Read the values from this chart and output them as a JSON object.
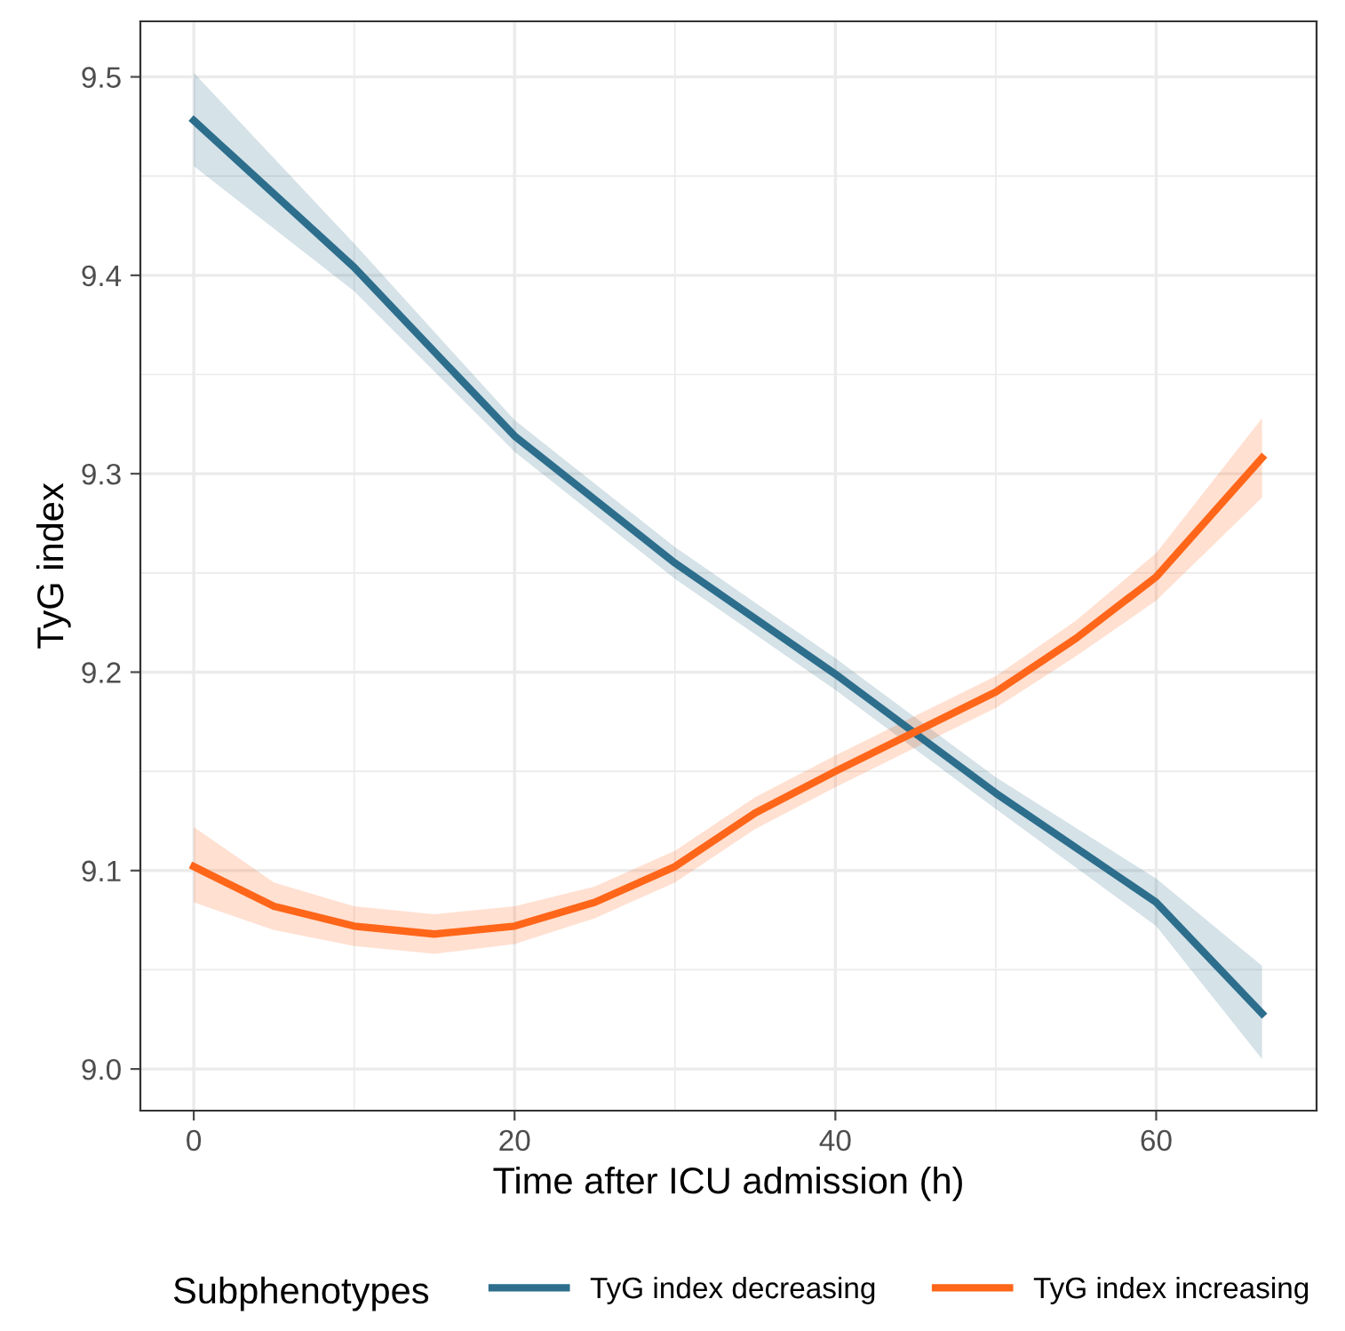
{
  "chart_data": {
    "type": "line",
    "xlabel": "Time after ICU admission (h)",
    "ylabel": "TyG index",
    "legend_title": "Subphenotypes",
    "xlim": [
      -3.33,
      69.93
    ],
    "ylim": [
      8.979,
      9.528
    ],
    "xticks": [
      0,
      20,
      40,
      60
    ],
    "yticks": [
      {
        "value": 9.0,
        "label": "9.0"
      },
      9.1,
      9.2,
      9.3,
      9.4,
      9.5
    ],
    "grid": true,
    "legend": "bottom",
    "line_style": "solid",
    "marker": "none",
    "series": [
      {
        "name": "TyG index decreasing",
        "color": "#2c6e8c",
        "x": [
          0,
          10,
          20,
          30,
          40,
          50,
          60,
          66.6
        ],
        "values": [
          9.478,
          9.404,
          9.319,
          9.255,
          9.199,
          9.139,
          9.084,
          9.028
        ],
        "lower": [
          9.455,
          9.392,
          9.311,
          9.247,
          9.191,
          9.131,
          9.072,
          9.005
        ],
        "upper": [
          9.502,
          9.416,
          9.327,
          9.263,
          9.207,
          9.147,
          9.096,
          9.052
        ]
      },
      {
        "name": "TyG index increasing",
        "color": "#ff6619",
        "x": [
          0,
          5,
          10,
          15,
          20,
          25,
          30,
          35,
          40,
          45,
          50,
          55,
          60,
          66.6
        ],
        "values": [
          9.102,
          9.082,
          9.072,
          9.068,
          9.072,
          9.084,
          9.102,
          9.129,
          9.15,
          9.17,
          9.19,
          9.217,
          9.248,
          9.308
        ],
        "lower": [
          9.084,
          9.07,
          9.062,
          9.058,
          9.063,
          9.076,
          9.094,
          9.121,
          9.142,
          9.162,
          9.182,
          9.208,
          9.236,
          9.288
        ],
        "upper": [
          9.122,
          9.094,
          9.082,
          9.078,
          9.082,
          9.092,
          9.11,
          9.137,
          9.158,
          9.178,
          9.198,
          9.226,
          9.26,
          9.328
        ]
      }
    ]
  }
}
